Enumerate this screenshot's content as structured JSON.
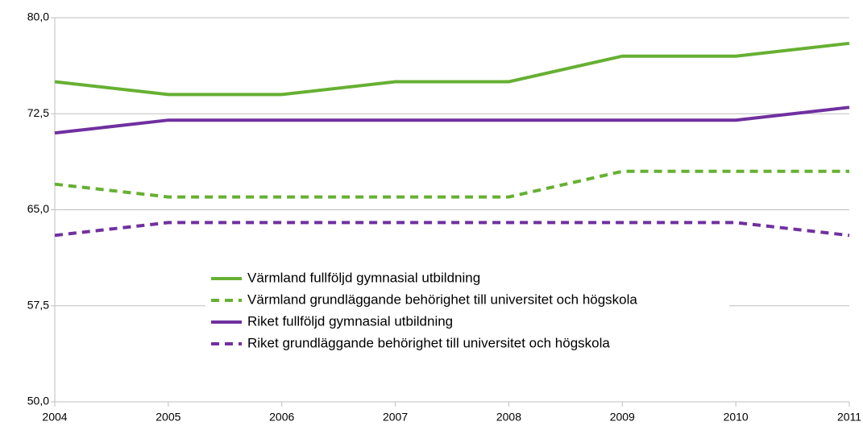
{
  "chart_data": {
    "type": "line",
    "x": [
      2004,
      2005,
      2006,
      2007,
      2008,
      2009,
      2010,
      2011
    ],
    "xlim": [
      2004,
      2011
    ],
    "xticks": [
      2004,
      2005,
      2006,
      2007,
      2008,
      2009,
      2010,
      2011
    ],
    "ylim": [
      50,
      80
    ],
    "yticks": [
      {
        "value": 50,
        "label": "50,0"
      },
      {
        "value": 57.5,
        "label": "57,5"
      },
      {
        "value": 65,
        "label": "65,0"
      },
      {
        "value": 72.5,
        "label": "72,5"
      },
      {
        "value": 80,
        "label": "80,0"
      }
    ],
    "grid": true,
    "series": [
      {
        "name": "Värmland fullföljd gymnasial utbildning",
        "color": "#66b032",
        "style": "solid",
        "values": [
          75,
          74,
          74,
          75,
          75,
          77,
          77,
          78
        ]
      },
      {
        "name": "Värmland grundläggande behörighet till universitet och högskola",
        "color": "#66b032",
        "style": "dashed",
        "values": [
          67,
          66,
          66,
          66,
          66,
          68,
          68,
          68
        ]
      },
      {
        "name": "Riket fullföljd gymnasial utbildning",
        "color": "#7030a0",
        "style": "solid",
        "values": [
          71,
          72,
          72,
          72,
          72,
          72,
          72,
          73
        ]
      },
      {
        "name": "Riket grundläggande behörighet till universitet och högskola",
        "color": "#7030a0",
        "style": "dashed",
        "values": [
          63,
          64,
          64,
          64,
          64,
          64,
          64,
          63
        ]
      }
    ]
  }
}
